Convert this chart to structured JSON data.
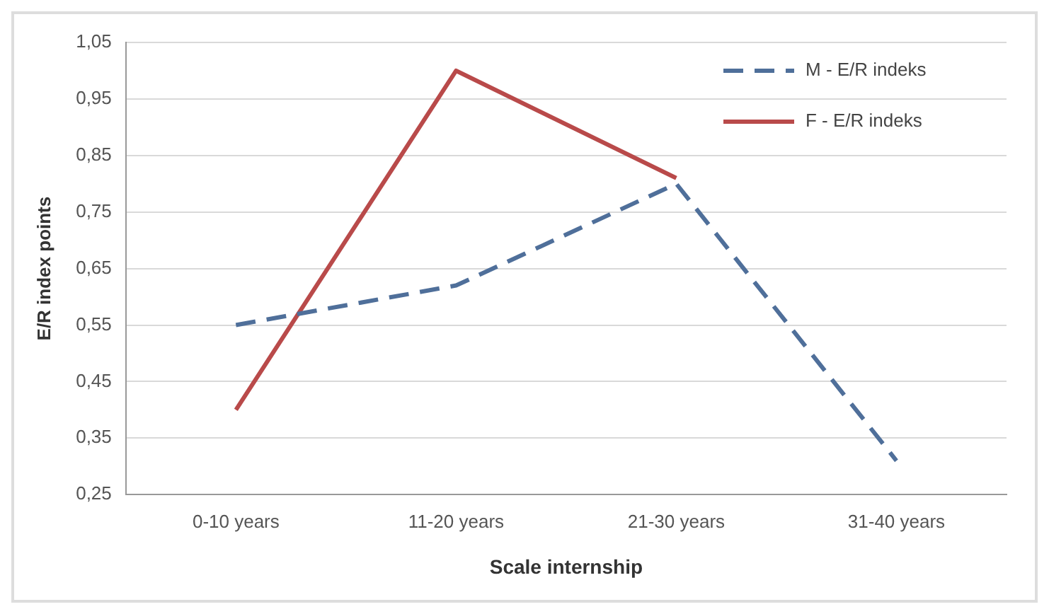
{
  "chart_data": {
    "type": "line",
    "xlabel": "Scale internship",
    "ylabel": "E/R index points",
    "categories": [
      "0-10 years",
      "11-20 years",
      "21-30 years",
      "31-40 years"
    ],
    "series": [
      {
        "name": "M - E/R indeks",
        "color": "#4f6f9a",
        "line_style": "dashed",
        "values": [
          0.55,
          0.62,
          0.8,
          0.31
        ]
      },
      {
        "name": "F - E/R indeks",
        "color": "#b94a4a",
        "line_style": "solid",
        "values": [
          0.4,
          1.0,
          0.81,
          null
        ]
      }
    ],
    "ylim": [
      0.25,
      1.05
    ],
    "yticks": [
      {
        "value": 0.25,
        "label": "0,25"
      },
      {
        "value": 0.35,
        "label": "0,35"
      },
      {
        "value": 0.45,
        "label": "0,45"
      },
      {
        "value": 0.55,
        "label": "0,55"
      },
      {
        "value": 0.65,
        "label": "0,65"
      },
      {
        "value": 0.75,
        "label": "0,75"
      },
      {
        "value": 0.85,
        "label": "0,85"
      },
      {
        "value": 0.95,
        "label": "0,95"
      },
      {
        "value": 1.05,
        "label": "1,05"
      }
    ],
    "grid": "y",
    "legend": "top right",
    "marker": "none"
  }
}
